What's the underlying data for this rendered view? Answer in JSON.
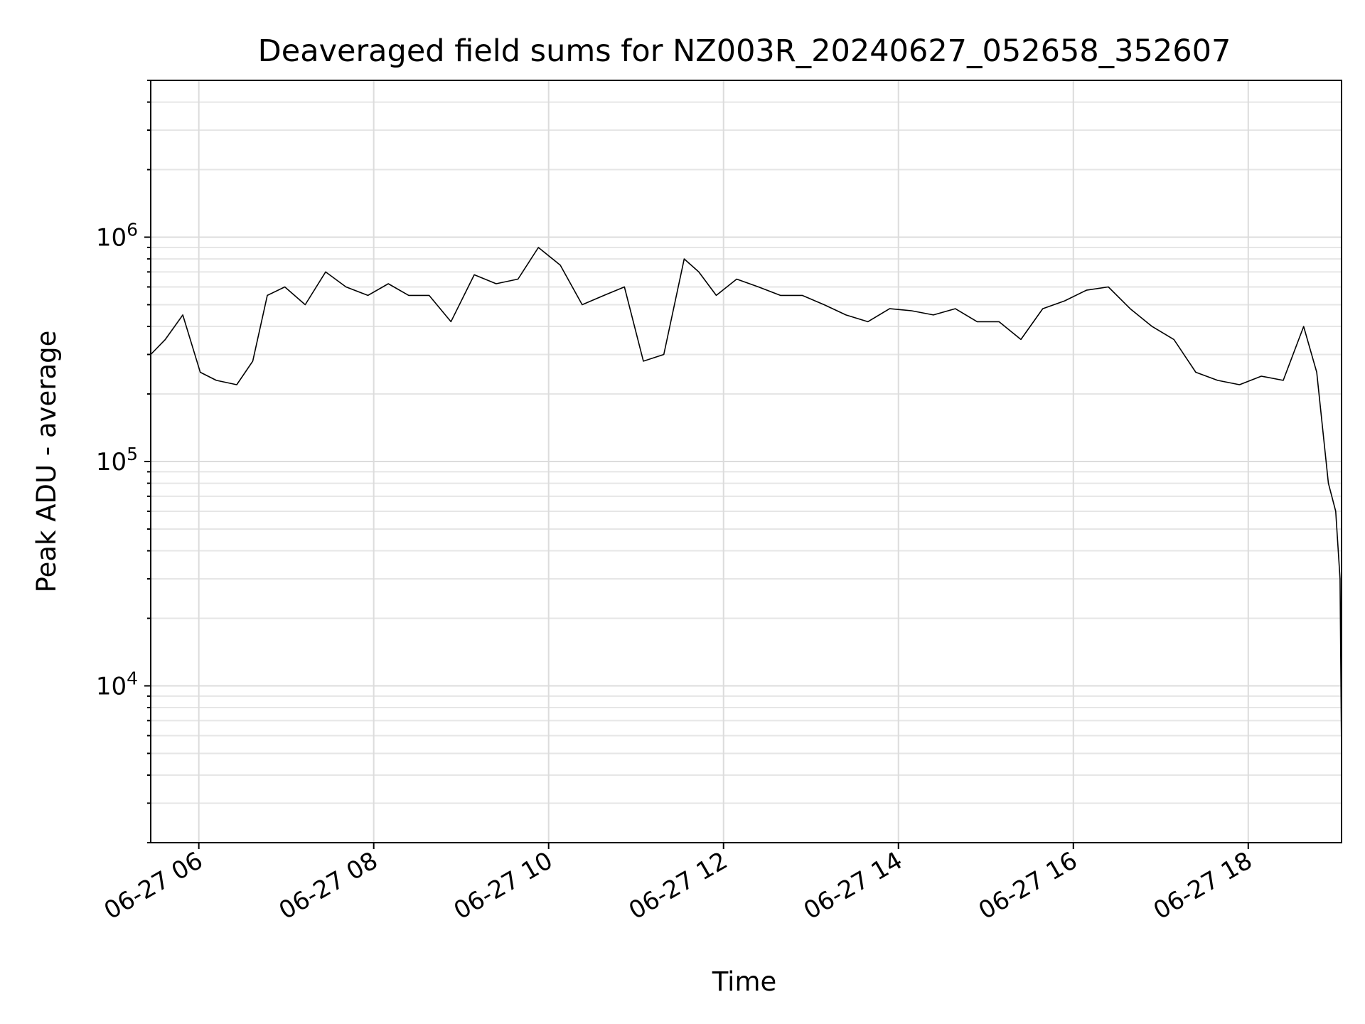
{
  "chart_data": {
    "type": "line",
    "title": "Deaveraged field sums for NZ003R_20240627_052658_352607",
    "xlabel": "Time",
    "ylabel": "Peak ADU - average",
    "x_range": [
      "2024-06-27T05:27",
      "2024-06-27T19:04"
    ],
    "x_ticks": [
      {
        "x": "2024-06-27T06:00",
        "label": "06-27 06"
      },
      {
        "x": "2024-06-27T08:00",
        "label": "06-27 08"
      },
      {
        "x": "2024-06-27T10:00",
        "label": "06-27 10"
      },
      {
        "x": "2024-06-27T12:00",
        "label": "06-27 12"
      },
      {
        "x": "2024-06-27T14:00",
        "label": "06-27 14"
      },
      {
        "x": "2024-06-27T16:00",
        "label": "06-27 16"
      },
      {
        "x": "2024-06-27T18:00",
        "label": "06-27 18"
      }
    ],
    "y_scale": "log",
    "ylim": [
      2000,
      5000000
    ],
    "y_ticks": [
      {
        "value": 10000,
        "base": "10",
        "exp": "4"
      },
      {
        "value": 100000,
        "base": "10",
        "exp": "5"
      },
      {
        "value": 1000000,
        "base": "10",
        "exp": "6"
      }
    ],
    "grid": true,
    "line_color": "#000000",
    "series": [
      {
        "x": [
          "2024-06-27T05:27",
          "2024-06-27T05:37",
          "2024-06-27T05:49",
          "2024-06-27T06:01",
          "2024-06-27T06:12",
          "2024-06-27T06:26",
          "2024-06-27T06:37",
          "2024-06-27T06:47",
          "2024-06-27T06:59",
          "2024-06-27T07:13",
          "2024-06-27T07:27",
          "2024-06-27T07:41",
          "2024-06-27T07:56",
          "2024-06-27T08:10",
          "2024-06-27T08:24",
          "2024-06-27T08:38",
          "2024-06-27T08:53",
          "2024-06-27T09:09",
          "2024-06-27T09:24",
          "2024-06-27T09:39",
          "2024-06-27T09:53",
          "2024-06-27T10:08",
          "2024-06-27T10:23",
          "2024-06-27T10:38",
          "2024-06-27T10:52",
          "2024-06-27T11:05",
          "2024-06-27T11:19",
          "2024-06-27T11:33",
          "2024-06-27T11:43",
          "2024-06-27T11:55",
          "2024-06-27T12:09",
          "2024-06-27T12:24",
          "2024-06-27T12:39",
          "2024-06-27T12:54",
          "2024-06-27T13:09",
          "2024-06-27T13:24",
          "2024-06-27T13:39",
          "2024-06-27T13:54",
          "2024-06-27T14:09",
          "2024-06-27T14:24",
          "2024-06-27T14:39",
          "2024-06-27T14:54",
          "2024-06-27T15:09",
          "2024-06-27T15:24",
          "2024-06-27T15:39",
          "2024-06-27T15:54",
          "2024-06-27T16:09",
          "2024-06-27T16:24",
          "2024-06-27T16:39",
          "2024-06-27T16:54",
          "2024-06-27T17:09",
          "2024-06-27T17:24",
          "2024-06-27T17:39",
          "2024-06-27T17:54",
          "2024-06-27T18:09",
          "2024-06-27T18:24",
          "2024-06-27T18:38",
          "2024-06-27T18:47",
          "2024-06-27T18:55",
          "2024-06-27T19:00",
          "2024-06-27T19:03",
          "2024-06-27T19:04"
        ],
        "y": [
          300000,
          350000,
          450000,
          250000,
          230000,
          220000,
          280000,
          550000,
          600000,
          500000,
          700000,
          600000,
          550000,
          620000,
          550000,
          550000,
          420000,
          680000,
          620000,
          650000,
          900000,
          750000,
          500000,
          550000,
          600000,
          280000,
          300000,
          800000,
          700000,
          550000,
          650000,
          600000,
          550000,
          550000,
          500000,
          450000,
          420000,
          480000,
          470000,
          450000,
          480000,
          420000,
          420000,
          350000,
          480000,
          520000,
          580000,
          600000,
          480000,
          400000,
          350000,
          250000,
          230000,
          220000,
          240000,
          230000,
          400000,
          250000,
          80000,
          60000,
          30000,
          5000
        ]
      }
    ]
  }
}
